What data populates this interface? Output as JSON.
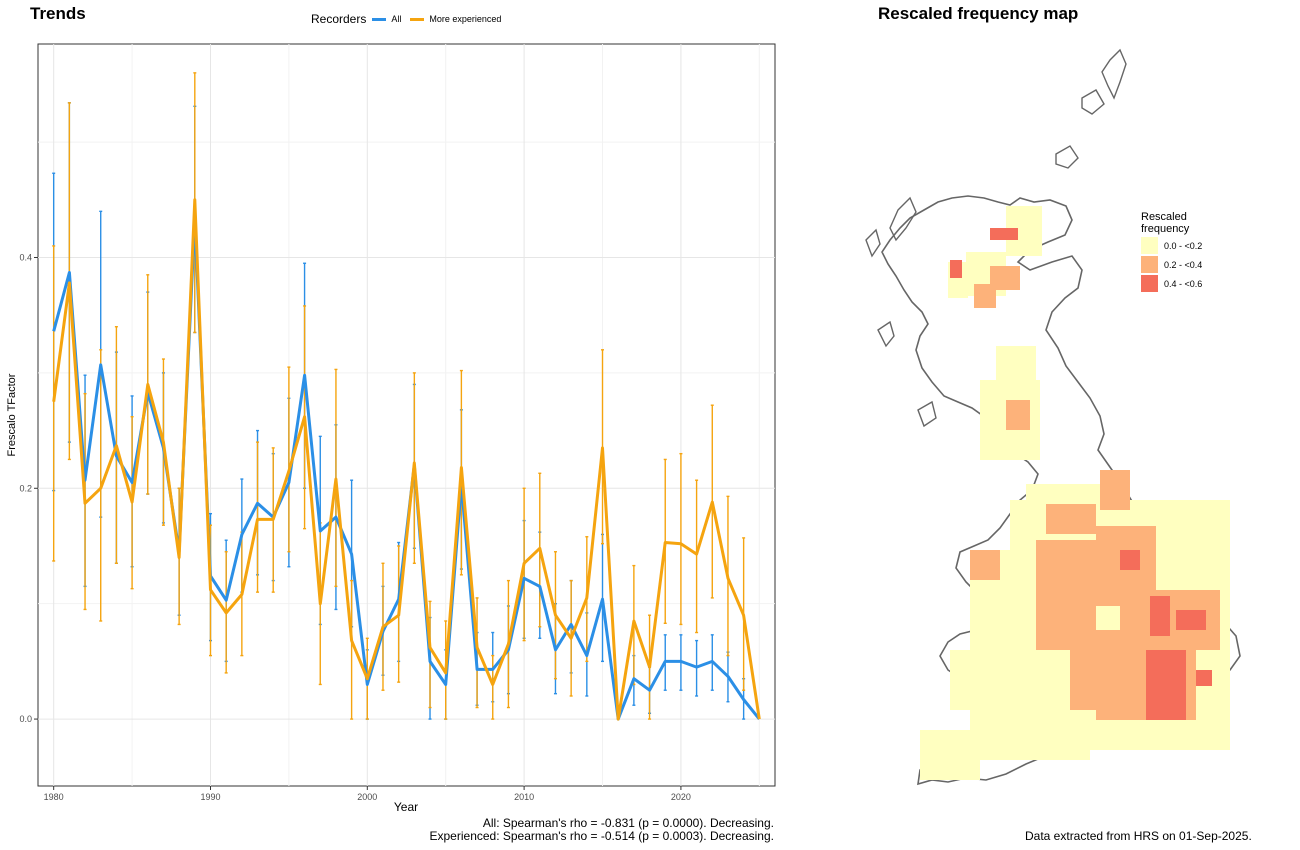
{
  "trends_title": "Trends",
  "map_title": "Rescaled frequency map",
  "legend": {
    "title": "Recorders",
    "items": [
      {
        "label": "All",
        "color": "#2b8fe6"
      },
      {
        "label": "More experienced",
        "color": "#f5a40f"
      }
    ]
  },
  "stats": {
    "all": "All: Spearman's rho = -0.831 (p = 0.0000). Decreasing.",
    "experienced": "Experienced: Spearman's rho = -0.514 (p = 0.0003). Decreasing."
  },
  "extracted": "Data extracted from HRS on 01-Sep-2025.",
  "map_legend": {
    "title_line1": "Rescaled",
    "title_line2": "frequency",
    "items": [
      {
        "label": "0.0 - <0.2",
        "color": "#ffffc0"
      },
      {
        "label": "0.2 - <0.4",
        "color": "#fdb27a"
      },
      {
        "label": "0.4 - <0.6",
        "color": "#f46d5a"
      }
    ]
  },
  "chart_data": {
    "type": "line",
    "xlabel": "Year",
    "ylabel": "Frescalo TFactor",
    "xlim": [
      1979,
      2026
    ],
    "ylim": [
      -0.058,
      0.585
    ],
    "xticks": [
      1980,
      1990,
      2000,
      2010,
      2020
    ],
    "yticks": [
      0.0,
      0.2,
      0.4
    ],
    "grid": true,
    "x": [
      1980,
      1981,
      1982,
      1983,
      1984,
      1985,
      1986,
      1987,
      1988,
      1989,
      1990,
      1991,
      1992,
      1993,
      1994,
      1995,
      1996,
      1997,
      1998,
      1999,
      2000,
      2001,
      2002,
      2003,
      2004,
      2005,
      2006,
      2007,
      2008,
      2009,
      2010,
      2011,
      2012,
      2013,
      2014,
      2015,
      2016,
      2017,
      2018,
      2019,
      2020,
      2021,
      2022,
      2023,
      2024,
      2025
    ],
    "series": [
      {
        "name": "All",
        "color": "#2b8fe6",
        "values": [
          0.336,
          0.387,
          0.207,
          0.307,
          0.228,
          0.205,
          0.283,
          0.235,
          0.145,
          0.433,
          0.124,
          0.103,
          0.16,
          0.187,
          0.175,
          0.205,
          0.298,
          0.163,
          0.175,
          0.143,
          0.03,
          0.076,
          0.104,
          0.22,
          0.05,
          0.03,
          0.204,
          0.043,
          0.043,
          0.06,
          0.122,
          0.115,
          0.06,
          0.082,
          0.055,
          0.104,
          0.0,
          0.035,
          0.025,
          0.05,
          0.05,
          0.045,
          0.05,
          0.037,
          0.017,
          0.0
        ],
        "lower": [
          0.198,
          0.24,
          0.115,
          0.175,
          0.135,
          0.132,
          0.195,
          0.17,
          0.09,
          0.335,
          0.068,
          0.05,
          0.11,
          0.125,
          0.12,
          0.132,
          0.2,
          0.082,
          0.095,
          0.08,
          0.0,
          0.038,
          0.05,
          0.148,
          0.0,
          0.0,
          0.13,
          0.012,
          0.015,
          0.022,
          0.07,
          0.07,
          0.022,
          0.04,
          0.02,
          0.05,
          0.0,
          0.012,
          0.005,
          0.025,
          0.025,
          0.02,
          0.025,
          0.015,
          0.0,
          0.0
        ],
        "upper": [
          0.473,
          0.534,
          0.298,
          0.44,
          0.318,
          0.28,
          0.37,
          0.3,
          0.2,
          0.531,
          0.178,
          0.155,
          0.208,
          0.25,
          0.23,
          0.278,
          0.395,
          0.245,
          0.255,
          0.207,
          0.06,
          0.115,
          0.153,
          0.29,
          0.088,
          0.06,
          0.268,
          0.075,
          0.075,
          0.098,
          0.172,
          0.162,
          0.1,
          0.12,
          0.092,
          0.16,
          0.0,
          0.055,
          0.045,
          0.073,
          0.073,
          0.068,
          0.073,
          0.058,
          0.035,
          0.0
        ]
      },
      {
        "name": "More experienced",
        "color": "#f5a40f",
        "values": [
          0.275,
          0.378,
          0.187,
          0.2,
          0.237,
          0.188,
          0.29,
          0.24,
          0.14,
          0.45,
          0.112,
          0.092,
          0.108,
          0.173,
          0.173,
          0.215,
          0.262,
          0.1,
          0.208,
          0.068,
          0.035,
          0.08,
          0.09,
          0.222,
          0.062,
          0.04,
          0.218,
          0.062,
          0.03,
          0.065,
          0.135,
          0.148,
          0.09,
          0.07,
          0.105,
          0.235,
          0.0,
          0.085,
          0.045,
          0.153,
          0.152,
          0.143,
          0.188,
          0.122,
          0.09,
          0.0
        ],
        "lower": [
          0.137,
          0.225,
          0.095,
          0.085,
          0.135,
          0.113,
          0.195,
          0.168,
          0.082,
          0.335,
          0.055,
          0.04,
          0.055,
          0.11,
          0.11,
          0.145,
          0.165,
          0.03,
          0.115,
          0.0,
          0.0,
          0.025,
          0.032,
          0.135,
          0.01,
          0.0,
          0.125,
          0.01,
          0.0,
          0.01,
          0.068,
          0.08,
          0.035,
          0.02,
          0.05,
          0.152,
          0.0,
          0.03,
          0.0,
          0.083,
          0.082,
          0.075,
          0.105,
          0.055,
          0.025,
          0.0
        ],
        "upper": [
          0.41,
          0.534,
          0.282,
          0.32,
          0.34,
          0.262,
          0.385,
          0.312,
          0.2,
          0.56,
          0.168,
          0.145,
          0.162,
          0.24,
          0.235,
          0.305,
          0.358,
          0.17,
          0.303,
          0.12,
          0.07,
          0.135,
          0.15,
          0.3,
          0.102,
          0.085,
          0.302,
          0.105,
          0.055,
          0.12,
          0.2,
          0.213,
          0.145,
          0.12,
          0.158,
          0.32,
          0.0,
          0.133,
          0.09,
          0.225,
          0.23,
          0.207,
          0.272,
          0.193,
          0.157,
          0.0
        ]
      }
    ]
  }
}
